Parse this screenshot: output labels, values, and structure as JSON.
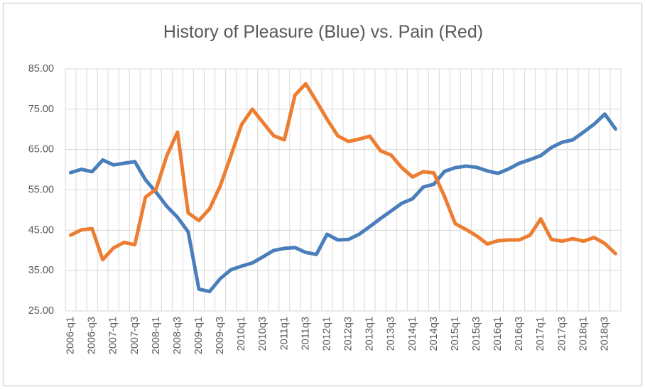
{
  "window": {
    "background_color": "#ffffff",
    "border_color": "#d9d9d9"
  },
  "chart_data": {
    "type": "line",
    "title": "History of Pleasure (Blue) vs. Pain (Red)",
    "xlabel": "",
    "ylabel": "",
    "ylim": [
      25,
      85
    ],
    "y_tick_step": 10,
    "grid": true,
    "legend_position": "none",
    "text_color": "#595959",
    "gridline_color": "#d9d9d9",
    "y_tick_labels": [
      "85.00",
      "75.00",
      "65.00",
      "55.00",
      "45.00",
      "35.00",
      "25.00"
    ],
    "x_tick_labels": [
      "2006-q1",
      "2006-q3",
      "2007-q1",
      "2007-q3",
      "2008-q1",
      "2008-q3",
      "2009-q1",
      "2009-q3",
      "2010q1",
      "2010q3",
      "2011q1",
      "2011q3",
      "2012q1",
      "2012q3",
      "2013q1",
      "2013q3",
      "2014q1",
      "2014q3",
      "2015q1",
      "2015q3",
      "2016q1",
      "2016q3",
      "2017q1",
      "2017q3",
      "2018q1",
      "2018q3"
    ],
    "categories": [
      "2006-q1",
      "2006-q2",
      "2006-q3",
      "2006-q4",
      "2007-q1",
      "2007-q2",
      "2007-q3",
      "2007-q4",
      "2008-q1",
      "2008-q2",
      "2008-q3",
      "2008-q4",
      "2009-q1",
      "2009-q2",
      "2009-q3",
      "2009-q4",
      "2010q1",
      "2010q2",
      "2010q3",
      "2010q4",
      "2011q1",
      "2011q2",
      "2011q3",
      "2011q4",
      "2012q1",
      "2012q2",
      "2012q3",
      "2012q4",
      "2013q1",
      "2013q2",
      "2013q3",
      "2013q4",
      "2014q1",
      "2014q2",
      "2014q3",
      "2014q4",
      "2015q1",
      "2015q2",
      "2015q3",
      "2015q4",
      "2016q1",
      "2016q2",
      "2016q3",
      "2016q4",
      "2017q1",
      "2017q2",
      "2017q3",
      "2017q4",
      "2018q1",
      "2018q2",
      "2018q3",
      "2018q4"
    ],
    "series": [
      {
        "name": "Pleasure (Blue)",
        "color": "#4a7ebb",
        "values": [
          59.3,
          60.1,
          59.5,
          62.4,
          61.2,
          61.6,
          62.0,
          57.5,
          54.4,
          50.9,
          48.2,
          44.6,
          30.4,
          29.8,
          33.0,
          35.2,
          36.1,
          36.9,
          38.4,
          40.0,
          40.5,
          40.7,
          39.5,
          39.0,
          44.0,
          42.6,
          42.7,
          44.0,
          45.9,
          47.9,
          49.8,
          51.7,
          52.8,
          55.7,
          56.4,
          59.6,
          60.5,
          60.9,
          60.6,
          59.7,
          59.1,
          60.2,
          61.6,
          62.5,
          63.5,
          65.5,
          66.8,
          67.4,
          69.3,
          71.3,
          73.8,
          70.1
        ]
      },
      {
        "name": "Pain (Red)",
        "color": "#ed7d31",
        "values": [
          43.8,
          45.1,
          45.4,
          37.7,
          40.6,
          42.0,
          41.4,
          53.2,
          55.2,
          63.5,
          69.3,
          49.3,
          47.4,
          50.3,
          56.0,
          63.5,
          71.2,
          75.0,
          71.7,
          68.4,
          67.4,
          78.5,
          81.3,
          77.0,
          72.5,
          68.4,
          67.0,
          67.6,
          68.3,
          64.7,
          63.6,
          60.5,
          58.2,
          59.5,
          59.2,
          53.3,
          46.6,
          45.2,
          43.6,
          41.6,
          42.4,
          42.6,
          42.6,
          43.8,
          47.8,
          42.7,
          42.3,
          42.9,
          42.3,
          43.2,
          41.7,
          39.2
        ]
      }
    ]
  }
}
